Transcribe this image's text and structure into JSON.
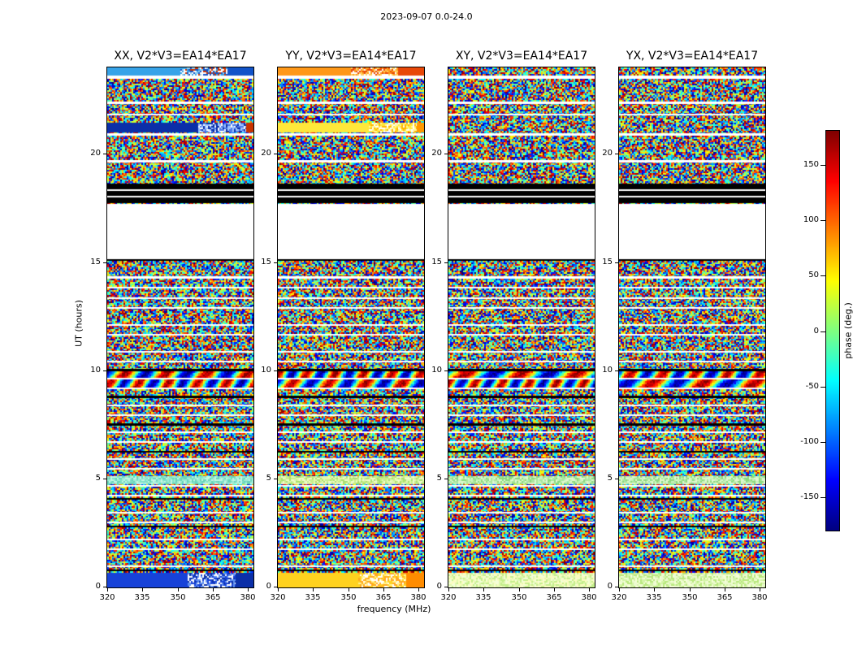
{
  "figure": {
    "title": "2023-09-07 0.0-24.0",
    "xlabel": "frequency (MHz)",
    "ylabel": "UT (hours)"
  },
  "panels": [
    {
      "title": "XX, V2*V3=EA14*EA17"
    },
    {
      "title": "YY, V2*V3=EA14*EA17"
    },
    {
      "title": "XY, V2*V3=EA14*EA17"
    },
    {
      "title": "YX, V2*V3=EA14*EA17"
    }
  ],
  "axes": {
    "x_ticks": [
      "320",
      "335",
      "350",
      "365",
      "380"
    ],
    "y_ticks": [
      "0",
      "5",
      "10",
      "15",
      "20"
    ],
    "x_range": [
      320,
      382
    ],
    "y_range": [
      0,
      24
    ]
  },
  "colorbar": {
    "label": "phase (deg.)",
    "ticks": [
      "150",
      "100",
      "50",
      "0",
      "-50",
      "-100",
      "-150"
    ],
    "range": [
      -180,
      180
    ],
    "colormap": "jet"
  },
  "chart_data": {
    "type": "heatmap",
    "title": "2023-09-07 0.0-24.0",
    "xlabel": "frequency (MHz)",
    "ylabel": "UT (hours)",
    "x_range_mhz": [
      320,
      382
    ],
    "x_ticks_mhz": [
      320,
      335,
      350,
      365,
      380
    ],
    "y_range_hours": [
      0,
      24
    ],
    "y_ticks_hours": [
      0,
      5,
      10,
      15,
      20
    ],
    "panels": [
      "XX, V2*V3=EA14*EA17",
      "YY, V2*V3=EA14*EA17",
      "XY, V2*V3=EA14*EA17",
      "YX, V2*V3=EA14*EA17"
    ],
    "value": "interferometric visibility phase in degrees, jet colormap, range -180 to +180",
    "legend_position": "right colorbar",
    "grid": false,
    "features": {
      "data_gap_ut_hours": [
        15.1,
        17.7
      ],
      "flagged_black_rows_ut_hours": [
        17.7,
        18.6
      ],
      "calibrator_scans_ut_hours": [
        [
          0.0,
          0.66
        ],
        [
          21.0,
          21.46
        ],
        [
          23.63,
          24.0
        ]
      ],
      "calibrator_phase_character": {
        "XX": "smooth blue (negative phase) with speckled right half",
        "YY": "smooth yellow/orange (positive phase) with speckled right half",
        "XY": "noise-like; pale yellow-green at 0 UT scan",
        "YX": "noise-like; pale green at 0 UT scan"
      },
      "thin_white_rows": "inter-scan gaps of 1-3 rows roughly every 0.3-1 hour",
      "body": "random speckle phase noise across 320-382 MHz; coherent smooth fringes near 9.3-9.7 UT; smooth low-phase greenish band near 4.7 UT; occasional fully-flagged black rows"
    },
    "render": {
      "bands": [
        {
          "y0": 0.0,
          "y1": 0.0155,
          "panels": {
            "0": {
              "kind": "split3",
              "zones": [
                0.5,
                0.82
              ],
              "c1": "#36a3e8",
              "c2": "#1253c8",
              "speckle": [
                "#1253c8",
                "#36a3e8",
                "#8fd0f0",
                "#ffffff",
                "#cc3300"
              ]
            },
            "1": {
              "kind": "split3",
              "zones": [
                0.5,
                0.82
              ],
              "c1": "#ff9818",
              "c2": "#e84808",
              "speckle": [
                "#e84808",
                "#ff9818",
                "#ffd060",
                "#ffffff"
              ]
            }
          }
        },
        {
          "y0": 0.106,
          "y1": 0.125,
          "panels": {
            "0": {
              "kind": "split3",
              "zones": [
                0.62,
                0.95
              ],
              "c1": "#0b2fa8",
              "c2": "#c83200",
              "speckle": [
                "#0b2fa8",
                "#4d79e8",
                "#ffffff",
                "#9fc4ff"
              ]
            },
            "1": {
              "kind": "split3",
              "zones": [
                0.62,
                0.95
              ],
              "c1": "#ffe83a",
              "c2": "#ff9900",
              "speckle": [
                "#ffe83a",
                "#ffb400",
                "#ffffff",
                "#fff8a0"
              ]
            }
          }
        },
        {
          "y0": 0.5845,
          "y1": 0.597,
          "all": {
            "kind": "fringe"
          }
        },
        {
          "y0": 0.6,
          "y1": 0.616,
          "all": {
            "kind": "fringe"
          }
        },
        {
          "y0": 0.786,
          "y1": 0.7995,
          "panels": {
            "0": {
              "kind": "speckle",
              "colors": [
                "#7fe0c8",
                "#a0ecd4",
                "#c4f6e4",
                "#68d4b8"
              ]
            },
            "1": {
              "kind": "speckle",
              "colors": [
                "#c8ee8c",
                "#e2f6b0",
                "#aade6e",
                "#f0fccc"
              ]
            },
            "2": {
              "kind": "speckle",
              "colors": [
                "#aae69e",
                "#c8f2bc",
                "#8cd87e",
                "#e0f8d0"
              ]
            },
            "3": {
              "kind": "speckle",
              "colors": [
                "#aae69e",
                "#c8f2bc",
                "#8cd87e",
                "#e0f8d0"
              ]
            }
          }
        },
        {
          "y0": 0.9725,
          "y1": 1.0,
          "panels": {
            "0": {
              "kind": "split3",
              "zones": [
                0.55,
                0.88
              ],
              "c1": "#1742d8",
              "c2": "#0b2fa8",
              "speckle": [
                "#1742d8",
                "#6090f0",
                "#ffffff",
                "#0b2fa8"
              ]
            },
            "1": {
              "kind": "split3",
              "zones": [
                0.55,
                0.88
              ],
              "c1": "#ffd21f",
              "c2": "#ff8c00",
              "speckle": [
                "#ffd21f",
                "#ffffff",
                "#ffa820",
                "#fff590"
              ]
            },
            "2": {
              "kind": "speckle",
              "colors": [
                "#e0f8b0",
                "#f4fed8",
                "#c4ee8c",
                "#fcfcc0"
              ]
            },
            "3": {
              "kind": "speckle",
              "colors": [
                "#d4f4a8",
                "#ecfad0",
                "#b8e87e",
                "#f6ffd8"
              ]
            }
          }
        }
      ],
      "gaps": [
        [
          0.0155,
          0.021
        ],
        [
          0.066,
          0.0705
        ],
        [
          0.089,
          0.0925
        ],
        [
          0.127,
          0.131
        ],
        [
          0.178,
          0.182
        ],
        [
          0.2345,
          0.237
        ],
        [
          0.2475,
          0.2505
        ],
        [
          0.262,
          0.3685
        ],
        [
          0.402,
          0.406
        ],
        [
          0.422,
          0.4255
        ],
        [
          0.442,
          0.4455
        ],
        [
          0.461,
          0.4645
        ],
        [
          0.494,
          0.4975
        ],
        [
          0.513,
          0.5165
        ],
        [
          0.545,
          0.5485
        ],
        [
          0.564,
          0.5675
        ],
        [
          0.597,
          0.6
        ],
        [
          0.616,
          0.619
        ],
        [
          0.6485,
          0.652
        ],
        [
          0.667,
          0.67
        ],
        [
          0.7,
          0.7035
        ],
        [
          0.719,
          0.7225
        ],
        [
          0.752,
          0.755
        ],
        [
          0.77,
          0.7735
        ],
        [
          0.8035,
          0.8065
        ],
        [
          0.822,
          0.825
        ],
        [
          0.855,
          0.858
        ],
        [
          0.8735,
          0.877
        ],
        [
          0.906,
          0.909
        ],
        [
          0.925,
          0.928
        ],
        [
          0.958,
          0.9615
        ]
      ],
      "blacks": [
        [
          0.2235,
          0.2345
        ],
        [
          0.237,
          0.2475
        ],
        [
          0.2505,
          0.262
        ],
        [
          0.3685,
          0.3715
        ],
        [
          0.58,
          0.5845
        ],
        [
          0.632,
          0.636
        ],
        [
          0.684,
          0.688
        ],
        [
          0.737,
          0.7405
        ],
        [
          0.828,
          0.8315
        ],
        [
          0.8805,
          0.884
        ],
        [
          0.9655,
          0.968
        ]
      ]
    }
  }
}
